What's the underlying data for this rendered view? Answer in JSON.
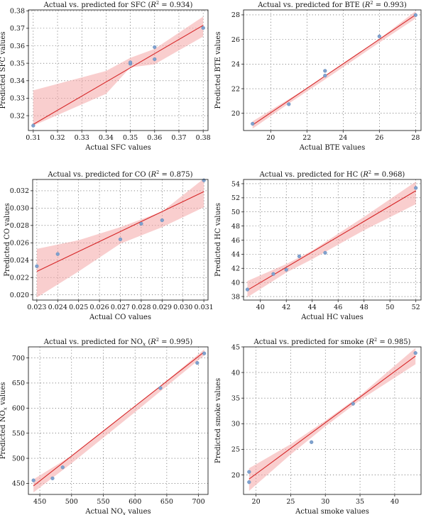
{
  "chart_data": [
    {
      "type": "scatter",
      "title": "Actual vs. predicted for SFC",
      "r2_label": "R",
      "r2_value": "= 0.934",
      "xlabel": "Actual SFC values",
      "ylabel": "Predicted SFC values",
      "xlim": [
        0.308,
        0.382
      ],
      "ylim": [
        0.3115,
        0.3805
      ],
      "xticks": [
        0.31,
        0.32,
        0.33,
        0.34,
        0.35,
        0.36,
        0.37,
        0.38
      ],
      "xtick_labels": [
        "0.31",
        "0.32",
        "0.33",
        "0.34",
        "0.35",
        "0.36",
        "0.37",
        "0.38"
      ],
      "yticks": [
        0.32,
        0.33,
        0.34,
        0.35,
        0.36,
        0.37,
        0.38
      ],
      "ytick_labels": [
        "0.32",
        "0.33",
        "0.34",
        "0.35",
        "0.36",
        "0.37",
        "0.38"
      ],
      "points": [
        [
          0.31,
          0.3143
        ],
        [
          0.35,
          0.3497
        ],
        [
          0.35,
          0.3505
        ],
        [
          0.36,
          0.3592
        ],
        [
          0.36,
          0.3523
        ],
        [
          0.38,
          0.3702
        ]
      ],
      "fit": [
        [
          0.31,
          0.315
        ],
        [
          0.38,
          0.3717
        ]
      ],
      "band": [
        [
          0.31,
          0.3345,
          0.3143
        ],
        [
          0.34,
          0.3456,
          0.3325
        ],
        [
          0.35,
          0.3531,
          0.3476
        ],
        [
          0.36,
          0.3582,
          0.3494
        ],
        [
          0.38,
          0.3767,
          0.3653
        ]
      ],
      "grid": true
    },
    {
      "type": "scatter",
      "title": "Actual vs. predicted for BTE",
      "r2_label": "R",
      "r2_value": "= 0.993",
      "xlabel": "Actual BTE values",
      "ylabel": "Predicted BTE values",
      "xlim": [
        18.5,
        28.3
      ],
      "ylim": [
        18.6,
        28.4
      ],
      "xticks": [
        20,
        22,
        24,
        26,
        28
      ],
      "xtick_labels": [
        "20",
        "22",
        "24",
        "26",
        "28"
      ],
      "yticks": [
        20,
        22,
        24,
        26,
        28
      ],
      "ytick_labels": [
        "20",
        "22",
        "24",
        "26",
        "28"
      ],
      "points": [
        [
          19,
          19.15
        ],
        [
          21,
          20.74
        ],
        [
          23,
          23.06
        ],
        [
          23,
          23.45
        ],
        [
          26,
          26.25
        ],
        [
          28,
          27.98
        ]
      ],
      "fit": [
        [
          19,
          19.05
        ],
        [
          28,
          28.0
        ]
      ],
      "band": [
        [
          19,
          19.35,
          18.75
        ],
        [
          21,
          21.15,
          20.8
        ],
        [
          23,
          22.95,
          22.75
        ],
        [
          26,
          26.05,
          25.75
        ],
        [
          28,
          28.3,
          27.7
        ]
      ],
      "grid": true
    },
    {
      "type": "scatter",
      "title": "Actual vs. predicted for CO",
      "r2_label": "R",
      "r2_value": "= 0.875",
      "xlabel": "Actual CO values",
      "ylabel": "Predicted CO values",
      "xlim": [
        0.0228,
        0.0312
      ],
      "ylim": [
        0.0194,
        0.0333
      ],
      "xticks": [
        0.023,
        0.024,
        0.025,
        0.026,
        0.027,
        0.028,
        0.029,
        0.03,
        0.031
      ],
      "xtick_labels": [
        "0.023",
        "0.024",
        "0.025",
        "0.026",
        "0.027",
        "0.028",
        "0.029",
        "0.030",
        "0.031"
      ],
      "yticks": [
        0.02,
        0.022,
        0.024,
        0.026,
        0.028,
        0.03,
        0.032
      ],
      "ytick_labels": [
        "0.020",
        "0.022",
        "0.024",
        "0.026",
        "0.028",
        "0.030",
        "0.032"
      ],
      "points": [
        [
          0.023,
          0.0233
        ],
        [
          0.024,
          0.0247
        ],
        [
          0.027,
          0.0264
        ],
        [
          0.028,
          0.0282
        ],
        [
          0.029,
          0.0286
        ],
        [
          0.031,
          0.0332
        ]
      ],
      "fit": [
        [
          0.023,
          0.0227
        ],
        [
          0.031,
          0.0319
        ]
      ],
      "band": [
        [
          0.023,
          0.0253,
          0.0197
        ],
        [
          0.025,
          0.0263,
          0.0227
        ],
        [
          0.027,
          0.0278,
          0.0259
        ],
        [
          0.029,
          0.0296,
          0.0278
        ],
        [
          0.031,
          0.0334,
          0.0301
        ]
      ],
      "grid": true
    },
    {
      "type": "scatter",
      "title": "Actual vs. predicted for HC",
      "r2_label": "R",
      "r2_value": "= 0.968",
      "xlabel": "Actual HC values",
      "ylabel": "Predicted HC values",
      "xlim": [
        38.7,
        52.4
      ],
      "ylim": [
        37.5,
        54.6
      ],
      "xticks": [
        40,
        42,
        44,
        46,
        48,
        50,
        52
      ],
      "xtick_labels": [
        "40",
        "42",
        "44",
        "46",
        "48",
        "50",
        "52"
      ],
      "yticks": [
        38,
        40,
        42,
        44,
        46,
        48,
        50,
        52,
        54
      ],
      "ytick_labels": [
        "38",
        "40",
        "42",
        "44",
        "46",
        "48",
        "50",
        "52",
        "54"
      ],
      "points": [
        [
          39,
          39.0
        ],
        [
          41,
          41.2
        ],
        [
          42,
          41.8
        ],
        [
          43,
          43.7
        ],
        [
          45,
          44.2
        ],
        [
          52,
          53.4
        ]
      ],
      "fit": [
        [
          39,
          38.9
        ],
        [
          52,
          53.0
        ]
      ],
      "band": [
        [
          39,
          40.2,
          37.9
        ],
        [
          42,
          42.6,
          41.4
        ],
        [
          44,
          44.5,
          43.3
        ],
        [
          48,
          49.3,
          47.4
        ],
        [
          52,
          54.3,
          51.1
        ]
      ],
      "grid": true
    },
    {
      "type": "scatter",
      "title": "Actual vs. predicted for NO",
      "title_sub": "x",
      "r2_label": "R",
      "r2_value": "= 0.995",
      "xlabel": "Actual NO",
      "xlabel_sub": "x",
      "xlabel_tail": "values",
      "ylabel": "Predicted NO",
      "ylabel_sub": "x",
      "ylabel_tail": "values",
      "xlim": [
        432,
        715
      ],
      "ylim": [
        428,
        722
      ],
      "xticks": [
        450,
        500,
        550,
        600,
        650,
        700
      ],
      "xtick_labels": [
        "450",
        "500",
        "550",
        "600",
        "650",
        "700"
      ],
      "yticks": [
        450,
        500,
        550,
        600,
        650,
        700
      ],
      "ytick_labels": [
        "450",
        "500",
        "550",
        "600",
        "650",
        "700"
      ],
      "points": [
        [
          440,
          456
        ],
        [
          470,
          460
        ],
        [
          486,
          482
        ],
        [
          640,
          640
        ],
        [
          698,
          690
        ],
        [
          709,
          709
        ]
      ],
      "fit": [
        [
          440,
          445
        ],
        [
          709,
          712
        ]
      ],
      "band": [
        [
          440,
          458,
          432
        ],
        [
          500,
          505,
          490
        ],
        [
          600,
          602,
          592
        ],
        [
          709,
          717,
          705
        ]
      ],
      "grid": true
    },
    {
      "type": "scatter",
      "title": "Actual vs. predicted for smoke",
      "r2_label": "R",
      "r2_value": "= 0.985",
      "xlabel": "Actual smoke values",
      "ylabel": "Predicted smoke values",
      "xlim": [
        18.2,
        43.8
      ],
      "ylim": [
        16.2,
        45.0
      ],
      "xticks": [
        20,
        25,
        30,
        35,
        40
      ],
      "xtick_labels": [
        "20",
        "25",
        "30",
        "35",
        "40"
      ],
      "yticks": [
        20,
        25,
        30,
        35,
        40,
        45
      ],
      "ytick_labels": [
        "20",
        "25",
        "30",
        "35",
        "40",
        "45"
      ],
      "points": [
        [
          19,
          20.6
        ],
        [
          19,
          18.6
        ],
        [
          28,
          26.4
        ],
        [
          34,
          33.9
        ],
        [
          43,
          43.8
        ]
      ],
      "fit": [
        [
          19,
          19.2
        ],
        [
          43,
          43.2
        ]
      ],
      "band": [
        [
          19,
          21.3,
          16.9
        ],
        [
          25,
          26.0,
          24.0
        ],
        [
          30,
          30.6,
          29.5
        ],
        [
          35,
          35.5,
          34.6
        ],
        [
          43,
          44.8,
          41.6
        ]
      ],
      "grid": true
    }
  ]
}
